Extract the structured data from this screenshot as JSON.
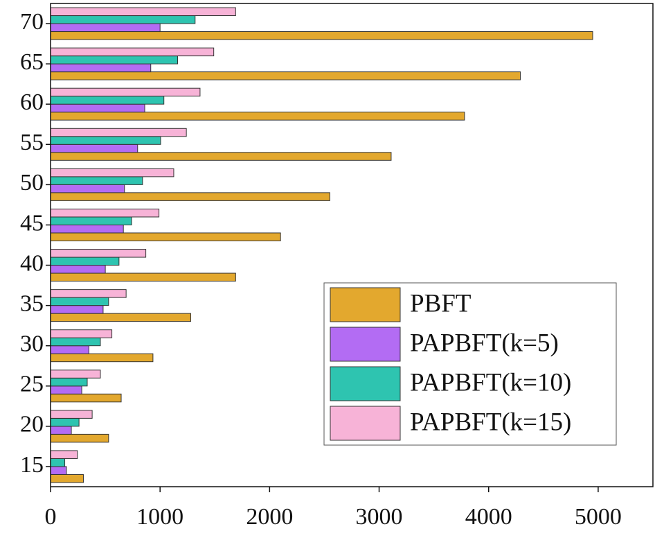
{
  "chart_data": {
    "type": "hbar",
    "categories": [
      "15",
      "20",
      "25",
      "30",
      "35",
      "40",
      "45",
      "50",
      "55",
      "60",
      "65",
      "70"
    ],
    "series": [
      {
        "name": "PBFT",
        "color": "#e3a82e",
        "values": [
          300,
          530,
          645,
          935,
          1280,
          1690,
          2100,
          2550,
          3110,
          3780,
          4290,
          4950
        ]
      },
      {
        "name": "PAPBFT(k=5)",
        "color": "#b36cf3",
        "values": [
          145,
          190,
          285,
          350,
          480,
          500,
          665,
          675,
          795,
          860,
          915,
          1000
        ]
      },
      {
        "name": "PAPBFT(k=10)",
        "color": "#2ec4b0",
        "values": [
          130,
          260,
          335,
          455,
          530,
          625,
          740,
          840,
          1005,
          1035,
          1160,
          1320
        ]
      },
      {
        "name": "PAPBFT(k=15)",
        "color": "#f7b3d7",
        "values": [
          245,
          380,
          455,
          560,
          690,
          870,
          990,
          1125,
          1240,
          1365,
          1490,
          1690
        ]
      }
    ],
    "xlim": [
      0,
      5500
    ],
    "xticks": [
      0,
      1000,
      2000,
      3000,
      4000,
      5000
    ],
    "legend": "lower-right"
  }
}
